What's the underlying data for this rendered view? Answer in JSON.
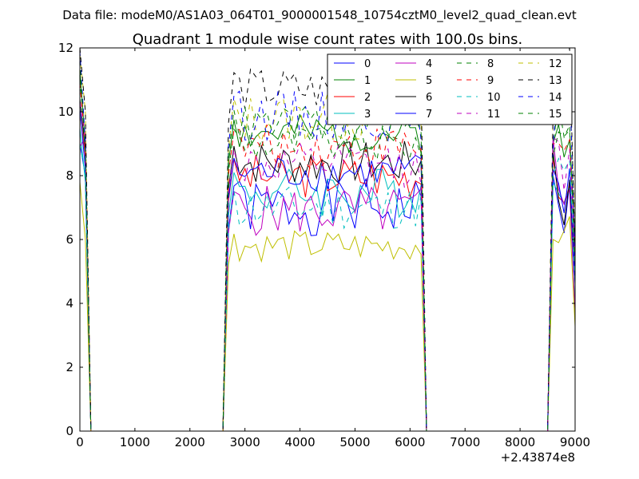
{
  "figure": {
    "suptitle": "Data file: modeM0/AS1A03_064T01_9000001548_10754cztM0_level2_quad_clean.evt"
  },
  "chart_data": {
    "type": "line",
    "title": "Quadrant 1 module wise count rates with 100.0s bins.",
    "xlabel": "",
    "ylabel": "",
    "x_offset_label": "+2.43874e8",
    "xlim": [
      0,
      9000
    ],
    "ylim": [
      0,
      12
    ],
    "xticks": [
      0,
      1000,
      2000,
      3000,
      4000,
      5000,
      6000,
      7000,
      8000,
      9000
    ],
    "yticks": [
      0,
      2,
      4,
      6,
      8,
      10,
      12
    ],
    "grid": false,
    "legend_position": "top-right",
    "segments": [
      {
        "x0": 100,
        "x1": 100,
        "start": [
          0,
          0
        ]
      },
      {
        "x0": 2600,
        "x1": 6200,
        "start": [
          0,
          0
        ]
      },
      {
        "x0": 8500,
        "x1": 8900,
        "start": [
          0,
          0
        ]
      }
    ],
    "series": [
      {
        "name": "0",
        "color": "#0000ff",
        "dash": "solid",
        "level": 7.0,
        "amp": 0.45,
        "seed": 1,
        "edge": [
          8.0,
          7.2
        ]
      },
      {
        "name": "1",
        "color": "#008000",
        "dash": "solid",
        "level": 9.3,
        "amp": 0.3,
        "seed": 2,
        "edge": [
          9.0,
          9.4
        ]
      },
      {
        "name": "2",
        "color": "#ff0000",
        "dash": "solid",
        "level": 8.0,
        "amp": 0.35,
        "seed": 3,
        "edge": [
          8.6,
          7.8
        ]
      },
      {
        "name": "3",
        "color": "#00bfbf",
        "dash": "solid",
        "level": 7.5,
        "amp": 0.4,
        "seed": 4,
        "edge": [
          7.8,
          7.6
        ]
      },
      {
        "name": "4",
        "color": "#bf00bf",
        "dash": "solid",
        "level": 6.9,
        "amp": 0.4,
        "seed": 5,
        "edge": [
          9.2,
          7.4
        ]
      },
      {
        "name": "5",
        "color": "#bfbf00",
        "dash": "solid",
        "level": 5.8,
        "amp": 0.25,
        "seed": 6,
        "edge": [
          6.0,
          6.4
        ]
      },
      {
        "name": "6",
        "color": "#000000",
        "dash": "solid",
        "level": 8.4,
        "amp": 0.35,
        "seed": 7,
        "edge": [
          8.8,
          7.4
        ]
      },
      {
        "name": "7",
        "color": "#0000ff",
        "dash": "solid",
        "level": 8.1,
        "amp": 0.3,
        "seed": 8,
        "edge": [
          8.2,
          7.6
        ]
      },
      {
        "name": "8",
        "color": "#008000",
        "dash": "dashed",
        "level": 9.0,
        "amp": 0.3,
        "seed": 9,
        "edge": [
          9.0,
          9.8
        ]
      },
      {
        "name": "9",
        "color": "#ff0000",
        "dash": "dashed",
        "level": 8.9,
        "amp": 0.35,
        "seed": 10,
        "edge": [
          9.0,
          9.2
        ]
      },
      {
        "name": "10",
        "color": "#00bfbf",
        "dash": "dashed",
        "level": 7.0,
        "amp": 0.35,
        "seed": 11,
        "edge": [
          8.0,
          8.4
        ]
      },
      {
        "name": "11",
        "color": "#bf00bf",
        "dash": "dashed",
        "level": 8.3,
        "amp": 0.35,
        "seed": 12,
        "edge": [
          9.2,
          8.6
        ]
      },
      {
        "name": "12",
        "color": "#bfbf00",
        "dash": "dashed",
        "level": 9.8,
        "amp": 0.4,
        "seed": 13,
        "edge": [
          10.0,
          10.8
        ]
      },
      {
        "name": "13",
        "color": "#000000",
        "dash": "dashed",
        "level": 10.7,
        "amp": 0.35,
        "seed": 14,
        "edge": [
          10.0,
          11.6
        ]
      },
      {
        "name": "14",
        "color": "#0000ff",
        "dash": "dashed",
        "level": 9.9,
        "amp": 0.4,
        "seed": 15,
        "edge": [
          9.0,
          10.5
        ]
      },
      {
        "name": "15",
        "color": "#008000",
        "dash": "dashed",
        "level": 9.6,
        "amp": 0.3,
        "seed": 16,
        "edge": [
          8.6,
          9.6
        ]
      }
    ]
  }
}
